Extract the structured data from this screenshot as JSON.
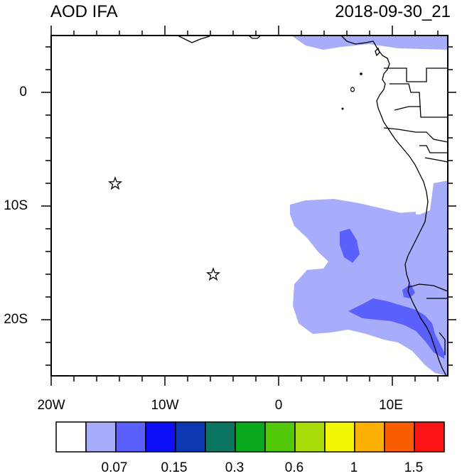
{
  "header": {
    "title": "AOD IFA",
    "timestamp": "2018-09-30_21"
  },
  "axes": {
    "lat_ticks": [
      {
        "label": "0",
        "value": 0
      },
      {
        "label": "10S",
        "value": -10
      },
      {
        "label": "20S",
        "value": -20
      }
    ],
    "lon_ticks": [
      {
        "label": "20W",
        "value": -20
      },
      {
        "label": "10W",
        "value": -10
      },
      {
        "label": "0",
        "value": 0
      },
      {
        "label": "10E",
        "value": 10
      }
    ],
    "lat_range": [
      -25,
      5
    ],
    "lon_range": [
      -20,
      15
    ]
  },
  "markers": [
    {
      "type": "star",
      "lon": -14.3,
      "lat": -8.0
    },
    {
      "type": "star",
      "lon": -5.7,
      "lat": -16.0
    }
  ],
  "colorbar": {
    "colors": [
      "#ffffff",
      "#a7acfb",
      "#5b5ffb",
      "#0d10f7",
      "#0c37b0",
      "#0c7562",
      "#0aa81e",
      "#51c909",
      "#aadc09",
      "#f3f703",
      "#fbb003",
      "#fb5d03",
      "#fb1414"
    ],
    "labels": [
      "0.07",
      "0.15",
      "0.3",
      "0.6",
      "1",
      "1.5"
    ]
  }
}
